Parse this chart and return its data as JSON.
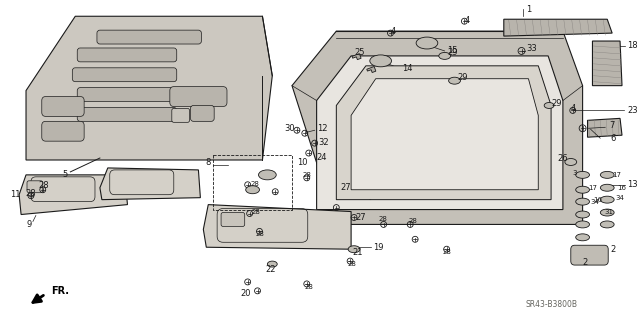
{
  "bg_color": "#ffffff",
  "line_color": "#1a1a1a",
  "fill_color": "#d8d4cc",
  "watermark": "SR43-B3800B",
  "fig_w": 6.4,
  "fig_h": 3.19,
  "dpi": 100
}
